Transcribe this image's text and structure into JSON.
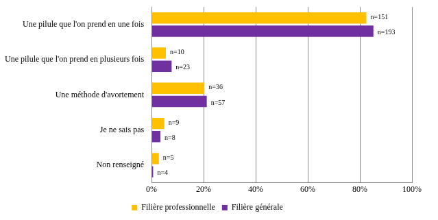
{
  "chart_data": {
    "type": "bar",
    "orientation": "horizontal",
    "categories": [
      "Une pilule que l'on prend en une fois",
      "Une pilule que l'on prend en plusieurs fois",
      "Une méthode d'avortement",
      "Je ne sais pas",
      "Non renseigné"
    ],
    "series": [
      {
        "name": "Filière professionnelle",
        "color": "#ffc000",
        "values": [
          82.5,
          5.5,
          20.3,
          4.9,
          2.8
        ],
        "annotations": [
          "n=151",
          "n=10",
          "n=36",
          "n=9",
          "n=5"
        ]
      },
      {
        "name": "Filière générale",
        "color": "#7030a0",
        "values": [
          85.2,
          7.7,
          21.2,
          3.4,
          0.6
        ],
        "annotations": [
          "n=193",
          "n=23",
          "n=57",
          "n=8",
          "n=4"
        ]
      }
    ],
    "xlim": [
      0,
      100
    ],
    "xticks": [
      {
        "value": 0,
        "label": "0%"
      },
      {
        "value": 20,
        "label": "20%"
      },
      {
        "value": 40,
        "label": "40%"
      },
      {
        "value": 60,
        "label": "60%"
      },
      {
        "value": 80,
        "label": "80%"
      },
      {
        "value": 100,
        "label": "100%"
      }
    ],
    "grid": true,
    "legend": "bottom"
  }
}
